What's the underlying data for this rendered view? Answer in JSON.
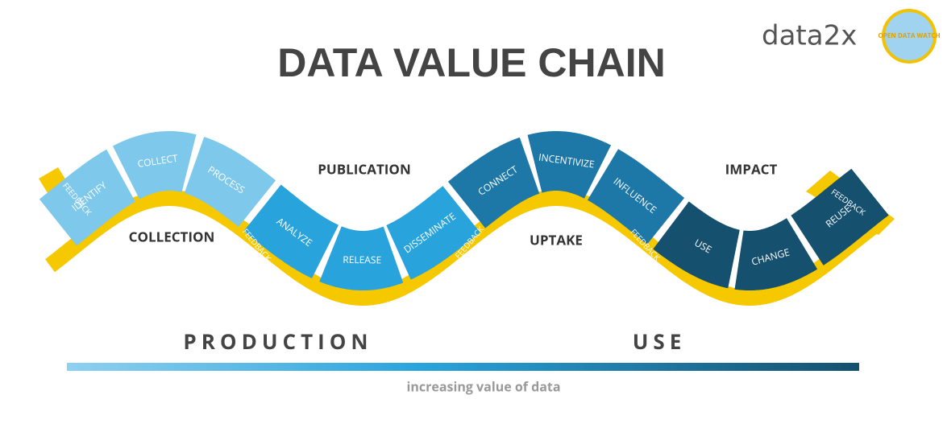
{
  "logo": {
    "brand": "data2x",
    "partner": "OPEN DATA WATCH"
  },
  "title": "DATA VALUE CHAIN",
  "stages": [
    {
      "label": "COLLECTION",
      "steps": [
        "IDENTIFY",
        "COLLECT",
        "PROCESS"
      ]
    },
    {
      "label": "PUBLICATION",
      "steps": [
        "ANALYZE",
        "RELEASE",
        "DISSEMINATE"
      ]
    },
    {
      "label": "UPTAKE",
      "steps": [
        "CONNECT",
        "INCENTIVIZE",
        "INFLUENCE"
      ]
    },
    {
      "label": "IMPACT",
      "steps": [
        "USE",
        "CHANGE",
        "REUSE"
      ]
    }
  ],
  "feedback": [
    "FEEDBACK",
    "FEEDBACK",
    "FEEDBACK",
    "FEEDBACK",
    "FEEDBACK"
  ],
  "phases": [
    "PRODUCTION",
    "USE"
  ],
  "axis_label": "increasing value of data"
}
